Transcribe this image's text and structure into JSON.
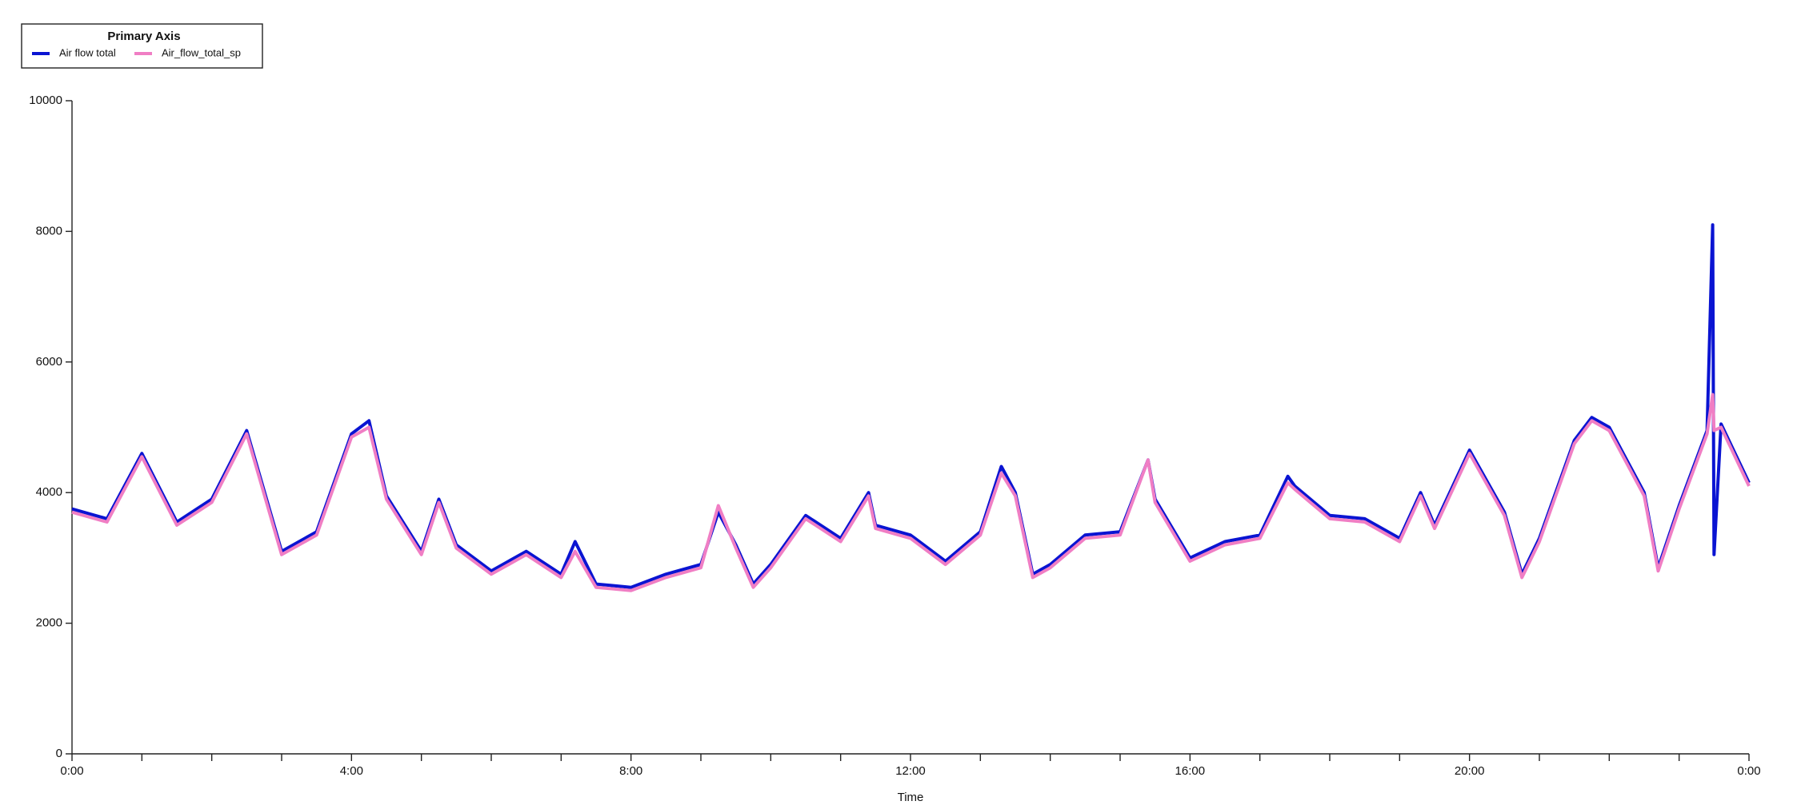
{
  "chart_data": {
    "type": "line",
    "legend_title": "Primary Axis",
    "x_label": "Time",
    "legend": "top-left",
    "grid": false,
    "x": [
      0,
      0.5,
      1,
      1.5,
      2,
      2.5,
      3,
      3.5,
      4,
      4.25,
      4.5,
      5,
      5.25,
      5.5,
      6,
      6.5,
      7,
      7.2,
      7.5,
      8,
      8.5,
      9,
      9.25,
      9.5,
      9.75,
      10,
      10.5,
      11,
      11.4,
      11.5,
      12,
      12.5,
      13,
      13.3,
      13.5,
      13.75,
      14,
      14.5,
      15,
      15.4,
      15.5,
      16,
      16.5,
      17,
      17.4,
      17.5,
      18,
      18.5,
      19,
      19.3,
      19.5,
      20,
      20.5,
      20.75,
      21,
      21.5,
      21.75,
      22,
      22.5,
      22.7,
      23,
      23.4,
      23.48,
      23.5,
      23.6,
      24
    ],
    "series": [
      {
        "name": "Air flow total",
        "color": "#0a14d2",
        "values": [
          3750,
          3600,
          4600,
          3550,
          3900,
          4950,
          3100,
          3400,
          4900,
          5100,
          3950,
          3100,
          3900,
          3200,
          2800,
          3100,
          2750,
          3250,
          2600,
          2550,
          2750,
          2900,
          3700,
          3200,
          2600,
          2900,
          3650,
          3300,
          4000,
          3500,
          3350,
          2950,
          3400,
          4400,
          4000,
          2750,
          2900,
          3350,
          3400,
          4500,
          3900,
          3000,
          3250,
          3350,
          4250,
          4100,
          3650,
          3600,
          3300,
          4000,
          3500,
          4650,
          3700,
          2750,
          3300,
          4800,
          5150,
          5000,
          4000,
          2850,
          3800,
          4950,
          8100,
          3050,
          5050,
          4150
        ]
      },
      {
        "name": "Air_flow_total_sp",
        "color": "#f07ec4",
        "values": [
          3700,
          3550,
          4550,
          3500,
          3850,
          4900,
          3050,
          3350,
          4850,
          5000,
          3900,
          3050,
          3850,
          3150,
          2750,
          3050,
          2700,
          3100,
          2550,
          2500,
          2700,
          2850,
          3800,
          3150,
          2550,
          2850,
          3600,
          3250,
          3950,
          3450,
          3300,
          2900,
          3350,
          4300,
          3950,
          2700,
          2850,
          3300,
          3350,
          4500,
          3850,
          2950,
          3200,
          3300,
          4150,
          4050,
          3600,
          3550,
          3250,
          3950,
          3450,
          4600,
          3650,
          2700,
          3250,
          4750,
          5100,
          4950,
          3950,
          2800,
          3750,
          4900,
          5500,
          4950,
          5000,
          4100
        ]
      }
    ],
    "xlim": [
      0,
      24
    ],
    "xticks": [
      {
        "value": 0,
        "label": "0:00"
      },
      {
        "value": 4,
        "label": "4:00"
      },
      {
        "value": 8,
        "label": "8:00"
      },
      {
        "value": 12,
        "label": "12:00"
      },
      {
        "value": 16,
        "label": "16:00"
      },
      {
        "value": 20,
        "label": "20:00"
      },
      {
        "value": 24,
        "label": "0:00"
      }
    ],
    "xminorticks": [
      1,
      2,
      3,
      5,
      6,
      7,
      9,
      10,
      11,
      13,
      14,
      15,
      17,
      18,
      19,
      21,
      22,
      23
    ],
    "ylim": [
      0,
      10000
    ],
    "yticks": [
      0,
      2000,
      4000,
      6000,
      8000,
      10000
    ]
  }
}
